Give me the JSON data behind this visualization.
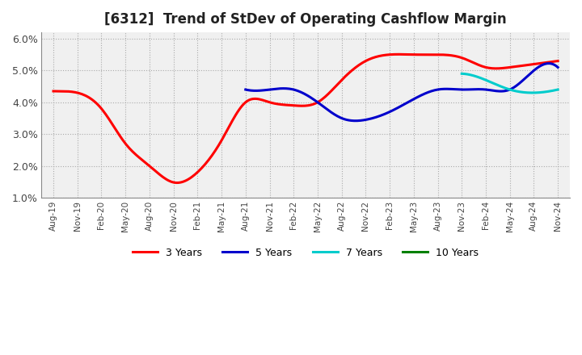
{
  "title": "[6312]  Trend of StDev of Operating Cashflow Margin",
  "ylim": [
    0.01,
    0.062
  ],
  "yticks": [
    0.01,
    0.02,
    0.03,
    0.04,
    0.05,
    0.06
  ],
  "ytick_labels": [
    "1.0%",
    "2.0%",
    "3.0%",
    "4.0%",
    "5.0%",
    "6.0%"
  ],
  "x_labels": [
    "Aug-19",
    "Nov-19",
    "Feb-20",
    "May-20",
    "Aug-20",
    "Nov-20",
    "Feb-21",
    "May-21",
    "Aug-21",
    "Nov-21",
    "Feb-22",
    "May-22",
    "Aug-22",
    "Nov-22",
    "Feb-23",
    "May-23",
    "Aug-23",
    "Nov-23",
    "Feb-24",
    "May-24",
    "Aug-24",
    "Nov-24"
  ],
  "series_3y_x": [
    0,
    1,
    2,
    3,
    4,
    5,
    6,
    7,
    8,
    9,
    10,
    11,
    12,
    13,
    14,
    15,
    16,
    17,
    18,
    19,
    20,
    21
  ],
  "series_3y": [
    0.0435,
    0.043,
    0.038,
    0.027,
    0.02,
    0.0148,
    0.018,
    0.028,
    0.04,
    0.04,
    0.039,
    0.04,
    0.047,
    0.053,
    0.055,
    0.055,
    0.055,
    0.054,
    0.051,
    0.051,
    0.052,
    0.053
  ],
  "series_5y_x": [
    8,
    9,
    10,
    11,
    12,
    13,
    14,
    15,
    16,
    17,
    18,
    19,
    20,
    21
  ],
  "series_5y": [
    0.044,
    0.044,
    0.044,
    0.04,
    0.035,
    0.0345,
    0.037,
    0.041,
    0.044,
    0.044,
    0.044,
    0.044,
    0.05,
    0.051
  ],
  "series_7y_x": [
    17,
    18,
    19,
    20,
    21
  ],
  "series_7y": [
    0.049,
    0.047,
    0.044,
    0.043,
    0.044
  ],
  "color_3y": "#FF0000",
  "color_5y": "#0000CC",
  "color_7y": "#00CCCC",
  "color_10y": "#008000",
  "bg_color": "#FFFFFF",
  "plot_bg": "#F0F0F0",
  "grid_color": "#AAAAAA",
  "title_fontsize": 12,
  "legend_labels": [
    "3 Years",
    "5 Years",
    "7 Years",
    "10 Years"
  ],
  "legend_colors": [
    "#FF0000",
    "#0000CC",
    "#00CCCC",
    "#008000"
  ],
  "linewidth": 2.2
}
